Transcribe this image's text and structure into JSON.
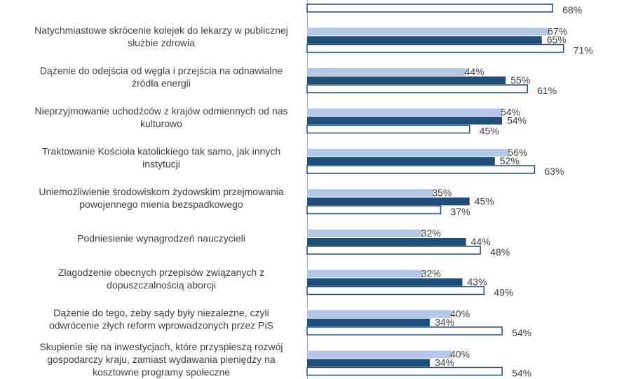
{
  "chart_data": {
    "type": "bar",
    "orientation": "horizontal",
    "series_styles": [
      {
        "fill": "#b4c7e7",
        "stroke": "none"
      },
      {
        "fill": "#1f4e79",
        "stroke": "none"
      },
      {
        "fill": "#ffffff",
        "stroke": "#1f4e79"
      }
    ],
    "value_suffix": "%",
    "x_range": [
      0,
      100
    ],
    "axis_color": "#a6a6a6",
    "partial_top": {
      "values": [
        null,
        null,
        68
      ]
    },
    "categories": [
      {
        "lines": [
          "Natychmiastowe skrócenie kolejek do lekarzy w publicznej",
          "służbie zdrowia"
        ],
        "values": [
          67,
          65,
          71
        ]
      },
      {
        "lines": [
          "Dążenie do odejścia od węgla i przejścia na odnawialne",
          "źródła energii"
        ],
        "values": [
          44,
          55,
          61
        ]
      },
      {
        "lines": [
          "Nieprzyjmowanie uchodźców z krajów odmiennych od nas",
          "kulturowo"
        ],
        "values": [
          54,
          54,
          45
        ]
      },
      {
        "lines": [
          "Traktowanie Kościoła katolickiego tak samo, jak innych",
          "instytucji"
        ],
        "values": [
          56,
          52,
          63
        ]
      },
      {
        "lines": [
          "Uniemożliwienie środowiskom żydowskim przejmowania",
          "powojennego mienia bezspadkowego"
        ],
        "values": [
          35,
          45,
          37
        ]
      },
      {
        "lines": [
          "Podniesienie wynagrodzeń nauczycieli"
        ],
        "values": [
          32,
          44,
          48
        ]
      },
      {
        "lines": [
          "Złagodzenie obecnych przepisów związanych z",
          "dopuszczalnością aborcji"
        ],
        "values": [
          32,
          43,
          49
        ]
      },
      {
        "lines": [
          "Dążenie do tego, żeby sądy były niezależne, czyli",
          "odwrócenie złych reform wprowadzonych przez PiS"
        ],
        "values": [
          40,
          34,
          54
        ]
      },
      {
        "lines": [
          "Skupienie się na inwestycjach, które przyspieszą rozwój",
          "gospodarczy kraju, zamiast wydawania pieniędzy na",
          "kosztowne programy społeczne"
        ],
        "values": [
          40,
          34,
          54
        ]
      }
    ]
  }
}
